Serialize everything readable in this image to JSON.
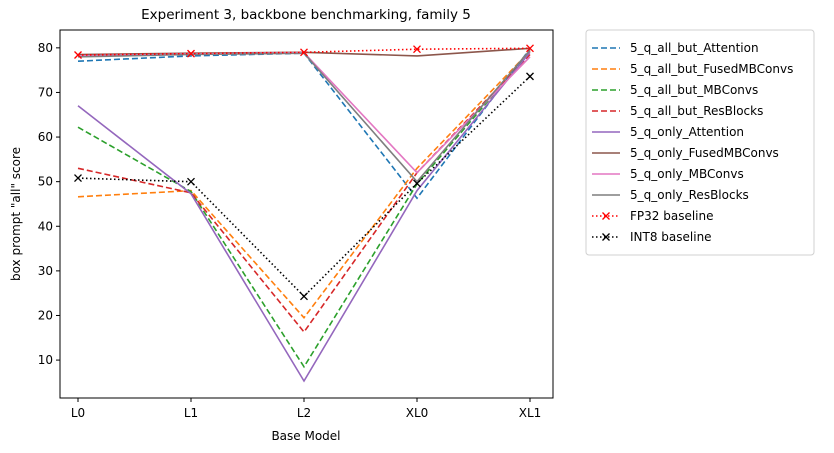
{
  "chart_data": {
    "type": "line",
    "title": "Experiment 3, backbone benchmarking, family 5",
    "xlabel": "Base Model",
    "ylabel": "box prompt \"all\" score",
    "categories": [
      "L0",
      "L1",
      "L2",
      "XL0",
      "XL1"
    ],
    "ylim": [
      1.5,
      84
    ],
    "yticks": [
      10,
      20,
      30,
      40,
      50,
      60,
      70,
      80
    ],
    "grid": false,
    "legend_position": "outside-right",
    "series": [
      {
        "name": "5_q_all_but_Attention",
        "color": "#1f77b4",
        "style": "dashed",
        "marker": "",
        "values": [
          77.0,
          78.2,
          78.8,
          46.3,
          79.8
        ]
      },
      {
        "name": "5_q_all_but_FusedMBConvs",
        "color": "#ff7f0e",
        "style": "dashed",
        "marker": "",
        "values": [
          46.6,
          48.0,
          19.5,
          53.0,
          79.3
        ]
      },
      {
        "name": "5_q_all_but_MBConvs",
        "color": "#2ca02c",
        "style": "dashed",
        "marker": "",
        "values": [
          62.2,
          47.8,
          8.5,
          49.5,
          79.1
        ]
      },
      {
        "name": "5_q_all_but_ResBlocks",
        "color": "#d62728",
        "style": "dashed",
        "marker": "",
        "values": [
          53.0,
          47.5,
          16.3,
          52.0,
          78.5
        ]
      },
      {
        "name": "5_q_only_Attention",
        "color": "#9467bd",
        "style": "solid",
        "marker": "",
        "values": [
          67.0,
          47.3,
          5.3,
          48.0,
          79.0
        ]
      },
      {
        "name": "5_q_only_FusedMBConvs",
        "color": "#8c564b",
        "style": "solid",
        "marker": "",
        "values": [
          78.5,
          78.8,
          79.0,
          78.2,
          79.9
        ]
      },
      {
        "name": "5_q_only_MBConvs",
        "color": "#e377c2",
        "style": "solid",
        "marker": "",
        "values": [
          78.2,
          78.6,
          78.9,
          52.0,
          78.0
        ]
      },
      {
        "name": "5_q_only_ResBlocks",
        "color": "#7f7f7f",
        "style": "solid",
        "marker": "",
        "values": [
          78.0,
          78.5,
          78.8,
          50.0,
          79.5
        ]
      },
      {
        "name": "FP32 baseline",
        "color": "#ff0000",
        "style": "dotted",
        "marker": "x",
        "values": [
          78.4,
          78.7,
          79.0,
          79.7,
          79.9
        ]
      },
      {
        "name": "INT8 baseline",
        "color": "#000000",
        "style": "dotted",
        "marker": "x",
        "values": [
          50.8,
          50.0,
          24.3,
          49.6,
          73.6
        ]
      }
    ]
  }
}
